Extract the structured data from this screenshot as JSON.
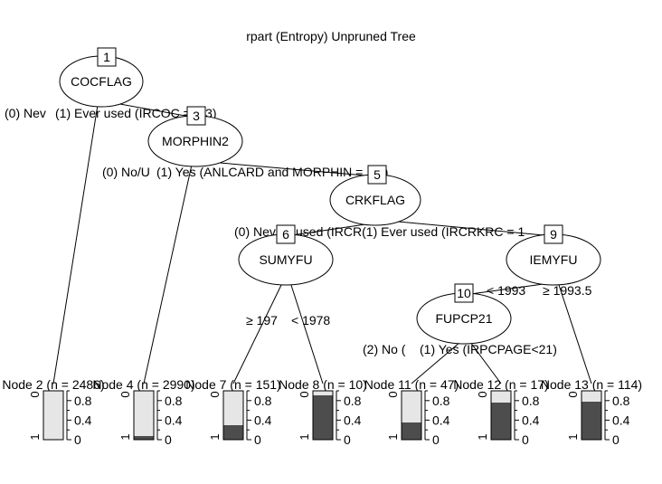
{
  "title": "rpart (Entropy) Unpruned Tree",
  "inner_nodes": [
    {
      "id": "1",
      "label": "COCFLAG",
      "left_edge": "(0) Nev",
      "right_edge": "(1) Ever used (IRCOC = 1-3)"
    },
    {
      "id": "3",
      "label": "MORPHIN2",
      "left_edge": "(0) No/U",
      "right_edge": "(1) Yes (ANLCARD and MORPHIN = 1,3)"
    },
    {
      "id": "5",
      "label": "CRKFLAG",
      "left_edge": "(0) Nev",
      "right_edge": "used (IRCR(1) Ever used (IRCRKRC = 1"
    },
    {
      "id": "6",
      "label": "SUMYFU",
      "left_edge": "≥ 197",
      "right_edge": "< 1978"
    },
    {
      "id": "9",
      "label": "IEMYFU",
      "left_edge": "< 1993",
      "right_edge": "≥ 1993.5"
    },
    {
      "id": "10",
      "label": "FUPCP21",
      "left_edge": "(2) No (",
      "right_edge": "(1) Yes (IRPCPAGE<21)"
    }
  ],
  "terminal_nodes": [
    {
      "id": "2",
      "label": "Node 2 (n = 2486)",
      "dark_fraction": 0.0
    },
    {
      "id": "4",
      "label": "Node 4 (n = 2990)",
      "dark_fraction": 0.08
    },
    {
      "id": "7",
      "label": "Node 7 (n = 151)",
      "dark_fraction": 0.3
    },
    {
      "id": "8",
      "label": "Node 8 (n = 10)",
      "dark_fraction": 0.9
    },
    {
      "id": "11",
      "label": "Node 11 (n = 47)",
      "dark_fraction": 0.35
    },
    {
      "id": "12",
      "label": "Node 12 (n = 17)",
      "dark_fraction": 0.75
    },
    {
      "id": "13",
      "label": "Node 13 (n = 114)",
      "dark_fraction": 0.78
    }
  ],
  "bar_axis": {
    "left_top": "0",
    "left_bottom": "1",
    "ticks": [
      "0.8",
      "0.4",
      "0"
    ]
  },
  "colors": {
    "dark": "#4d4d4d",
    "light": "#e6e6e6"
  }
}
